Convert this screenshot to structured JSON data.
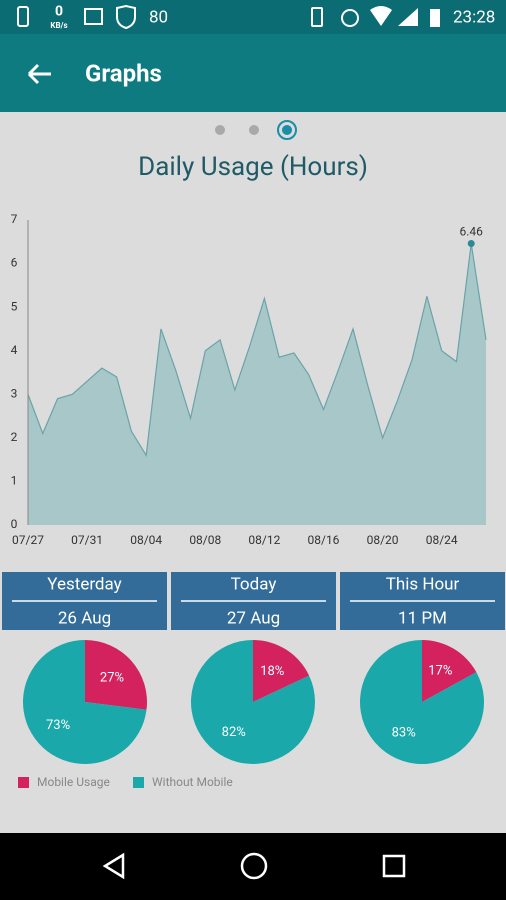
{
  "status_bar": {
    "speed": "0",
    "speed_unit": "KB/s",
    "battery_level": "80",
    "time": "23:28"
  },
  "app_bar": {
    "title": "Graphs"
  },
  "chart_data": [
    {
      "type": "area",
      "title": "Daily Usage (Hours)",
      "categories": [
        "07/27",
        null,
        null,
        null,
        "07/31",
        null,
        null,
        null,
        "08/04",
        null,
        null,
        null,
        "08/08",
        null,
        null,
        null,
        "08/12",
        null,
        null,
        null,
        "08/16",
        null,
        null,
        null,
        "08/20",
        null,
        null,
        null,
        "08/24",
        null,
        null,
        null
      ],
      "values": [
        3.0,
        2.1,
        2.9,
        3.0,
        3.3,
        3.6,
        3.4,
        2.15,
        1.6,
        4.5,
        3.55,
        2.45,
        4.0,
        4.25,
        3.1,
        4.1,
        5.2,
        3.85,
        3.95,
        3.45,
        2.65,
        3.55,
        4.5,
        3.2,
        2.0,
        2.85,
        3.8,
        5.25,
        4.0,
        3.75,
        6.46,
        4.25
      ],
      "color": "#a8c7c8",
      "line_color": "#6aa3a8",
      "ylim": [
        0,
        7
      ],
      "yticks": [
        0,
        1,
        2,
        3,
        4,
        5,
        6,
        7
      ]
    },
    {
      "type": "pie",
      "title": "Yesterday",
      "subtitle": "26 Aug",
      "categories": [
        "Mobile Usage",
        "Without Mobile"
      ],
      "values": [
        27,
        73
      ],
      "value_labels": [
        "27%",
        "73%"
      ],
      "colors": [
        "#d3225e",
        "#1aa8aa"
      ]
    },
    {
      "type": "pie",
      "title": "Today",
      "subtitle": "27 Aug",
      "categories": [
        "Mobile Usage",
        "Without Mobile"
      ],
      "values": [
        18,
        82
      ],
      "value_labels": [
        "18%",
        "82%"
      ],
      "colors": [
        "#d3225e",
        "#1aa8aa"
      ]
    },
    {
      "type": "pie",
      "title": "This Hour",
      "subtitle": "11 PM",
      "categories": [
        "Mobile Usage",
        "Without Mobile"
      ],
      "values": [
        17,
        83
      ],
      "value_labels": [
        "17%",
        "83%"
      ],
      "colors": [
        "#d3225e",
        "#1aa8aa"
      ]
    }
  ]
}
